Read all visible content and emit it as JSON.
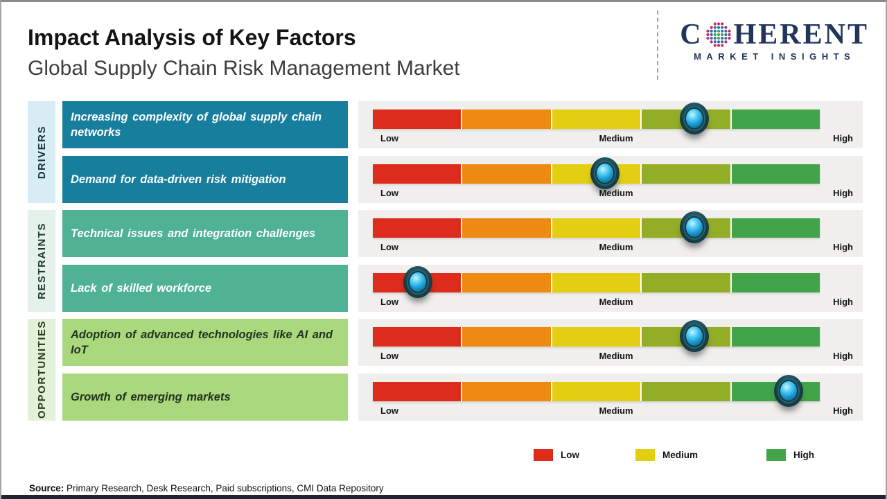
{
  "header": {
    "title": "Impact Analysis of Key Factors",
    "subtitle": "Global Supply Chain Risk Management Market",
    "logo": {
      "brand_left": "C",
      "brand_right": "HERENT",
      "tagline": "MARKET INSIGHTS",
      "brand_color": "#22365c",
      "globe_dot_colors": {
        "inner": "#3fa24c",
        "middle": "#2f6eb0",
        "outer": "#c02c5a"
      }
    }
  },
  "axis": {
    "low": "Low",
    "medium": "Medium",
    "high": "High"
  },
  "categories": [
    {
      "label": "DRIVERS",
      "label_bg": "#d8ecf4",
      "label_color": "#14333f",
      "box_bg": "#177e9d",
      "box_color": "#ffffff",
      "factors": [
        {
          "text": "Increasing complexity of global supply chain networks",
          "impact_percent": 72
        },
        {
          "text": "Demand for data-driven  risk mitigation",
          "impact_percent": 52
        }
      ]
    },
    {
      "label": "RESTRAINTS",
      "label_bg": "#e5f1eb",
      "label_color": "#1d392f",
      "box_bg": "#4fb294",
      "box_color": "#ffffff",
      "factors": [
        {
          "text": "Technical issues and integration challenges",
          "impact_percent": 72
        },
        {
          "text": "Lack of skilled workforce",
          "impact_percent": 10
        }
      ]
    },
    {
      "label": "OPPORTUNITIES",
      "label_bg": "#e3f1da",
      "label_color": "#263a19",
      "box_bg": "#a9d87d",
      "box_color": "#24321f",
      "factors": [
        {
          "text": "Adoption of advanced technologies like AI and IoT",
          "impact_percent": 72
        },
        {
          "text": "Growth of emerging markets",
          "impact_percent": 93
        }
      ]
    }
  ],
  "chart_data": {
    "type": "impact-scale",
    "title": "Impact Analysis of Key Factors",
    "subtitle": "Global Supply Chain Risk Management Market",
    "scale": [
      "Low",
      "Medium",
      "High"
    ],
    "scale_range": [
      0,
      100
    ],
    "segment_colors": [
      "#dd2c1b",
      "#ee8a12",
      "#e3ce12",
      "#94ad26",
      "#42a449"
    ],
    "rows": [
      {
        "category": "DRIVERS",
        "factor": "Increasing complexity of global supply chain networks",
        "impact_percent": 72,
        "impact_reading": "between Medium and High"
      },
      {
        "category": "DRIVERS",
        "factor": "Demand for data-driven risk mitigation",
        "impact_percent": 52,
        "impact_reading": "Medium"
      },
      {
        "category": "RESTRAINTS",
        "factor": "Technical issues and integration challenges",
        "impact_percent": 72,
        "impact_reading": "between Medium and High"
      },
      {
        "category": "RESTRAINTS",
        "factor": "Lack of skilled workforce",
        "impact_percent": 10,
        "impact_reading": "Low"
      },
      {
        "category": "OPPORTUNITIES",
        "factor": "Adoption of advanced technologies like AI and IoT",
        "impact_percent": 72,
        "impact_reading": "between Medium and High"
      },
      {
        "category": "OPPORTUNITIES",
        "factor": "Growth of emerging markets",
        "impact_percent": 93,
        "impact_reading": "High"
      }
    ],
    "marker_style": "glossy teal-blue sphere",
    "legend_position": "bottom-right",
    "grid": false
  },
  "legend": {
    "items": [
      {
        "label": "Low",
        "color": "#dd2c1b"
      },
      {
        "label": "Medium",
        "color": "#e3ce12"
      },
      {
        "label": "High",
        "color": "#42a449"
      }
    ]
  },
  "source": {
    "prefix": "Source:",
    "text": " Primary Research, Desk Research, Paid subscriptions, CMI Data Repository"
  }
}
